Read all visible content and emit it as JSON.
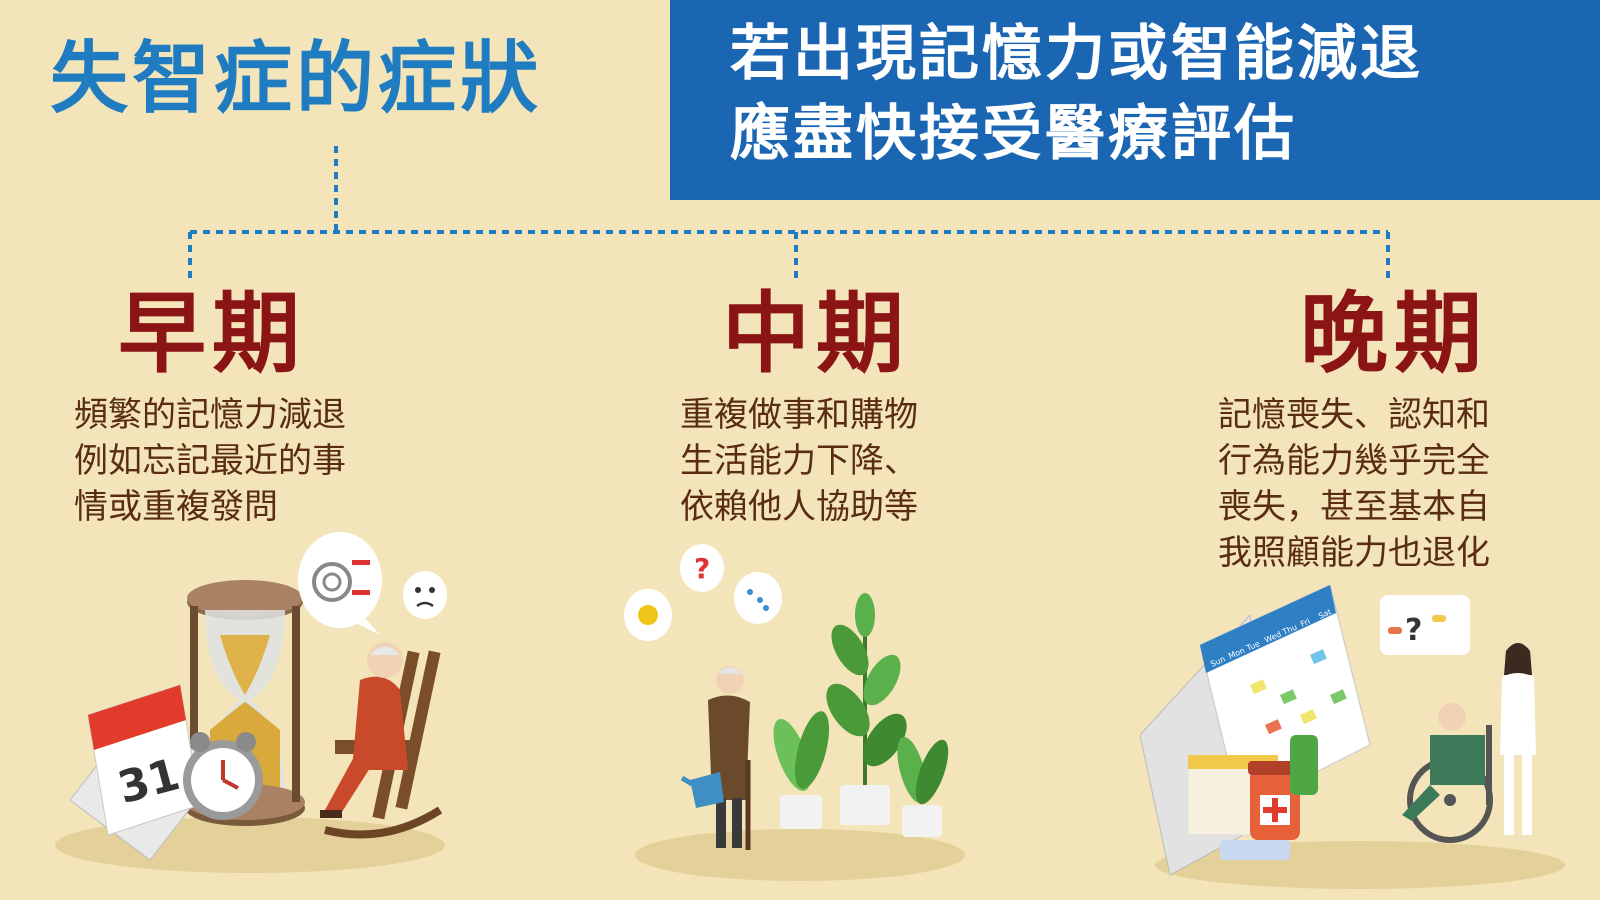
{
  "title": "失智症的症狀",
  "banner": {
    "line1": "若出現記憶力或智能減退",
    "line2": "應盡快接受醫療評估"
  },
  "stages": [
    {
      "label": "早期",
      "lines": [
        "頻繁的記憶力減退",
        "例如忘記最近的事",
        "情或重複發問"
      ]
    },
    {
      "label": "中期",
      "lines": [
        "重複做事和購物",
        "生活能力下降、",
        "依賴他人協助等"
      ]
    },
    {
      "label": "晚期",
      "lines": [
        "記憶喪失、認知和",
        "行為能力幾乎完全",
        "喪失，甚至基本自",
        "我照顧能力也退化"
      ]
    }
  ],
  "illustrations": {
    "calendar_day": "31",
    "weekdays": [
      "Sun",
      "Mon",
      "Tue",
      "Wed",
      "Thu",
      "Fri",
      "Sat"
    ],
    "question_mark": "?"
  },
  "colors": {
    "background": "#f3e5b9",
    "title": "#1f7cc1",
    "banner": "#1a66b3",
    "stage_label": "#8b1414",
    "stage_text": "#5a2d12",
    "connector": "#1f7cc1"
  }
}
